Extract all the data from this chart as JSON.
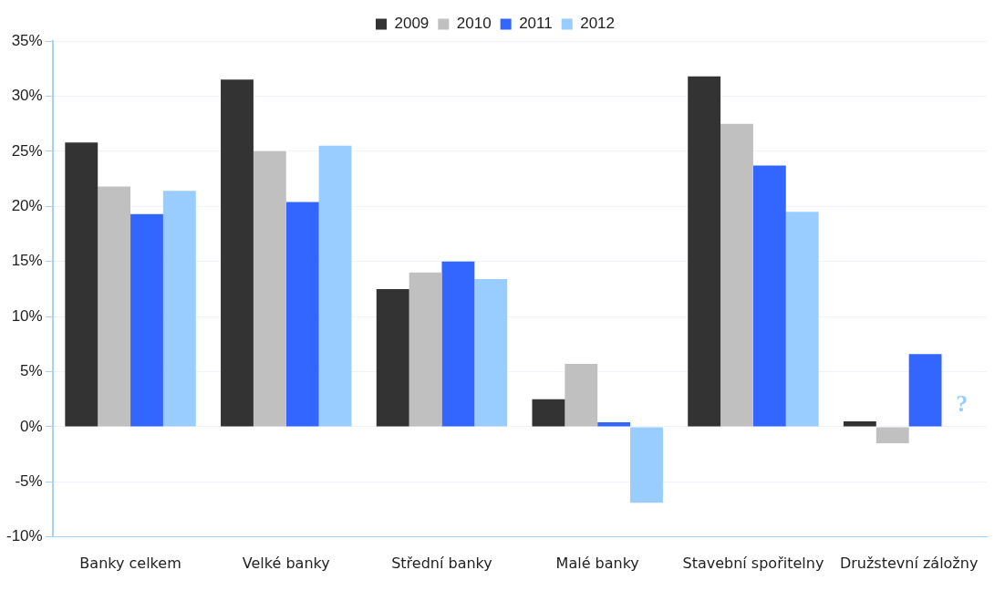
{
  "chart_data": {
    "type": "bar",
    "categories": [
      "Banky celkem",
      "Velké banky",
      "Střední banky",
      "Malé banky",
      "Stavební spořitelny",
      "Družstevní záložny"
    ],
    "series": [
      {
        "name": "2009",
        "color": "#333333",
        "values": [
          25.8,
          31.5,
          12.5,
          2.5,
          31.8,
          0.5
        ]
      },
      {
        "name": "2010",
        "color": "#c0c0c0",
        "values": [
          21.8,
          25.0,
          14.0,
          5.7,
          27.5,
          -1.5
        ]
      },
      {
        "name": "2011",
        "color": "#3366ff",
        "values": [
          19.3,
          20.4,
          15.0,
          0.4,
          23.7,
          6.6
        ]
      },
      {
        "name": "2012",
        "color": "#99ccff",
        "values": [
          21.4,
          25.5,
          13.4,
          -6.9,
          19.5,
          null
        ]
      }
    ],
    "ylim": [
      -10,
      35
    ],
    "yticks": [
      {
        "value": -10,
        "label": "-10%"
      },
      {
        "value": -5,
        "label": "-5%"
      },
      {
        "value": 0,
        "label": "0%"
      },
      {
        "value": 5,
        "label": "5%"
      },
      {
        "value": 10,
        "label": "10%"
      },
      {
        "value": 15,
        "label": "15%"
      },
      {
        "value": 20,
        "label": "20%"
      },
      {
        "value": 25,
        "label": "25%"
      },
      {
        "value": 30,
        "label": "30%"
      },
      {
        "value": 35,
        "label": "35%"
      }
    ],
    "grid": "y",
    "legend": "top",
    "annotations": [
      {
        "text": "?",
        "x": "Družstevní záložny",
        "y": 2
      }
    ]
  }
}
